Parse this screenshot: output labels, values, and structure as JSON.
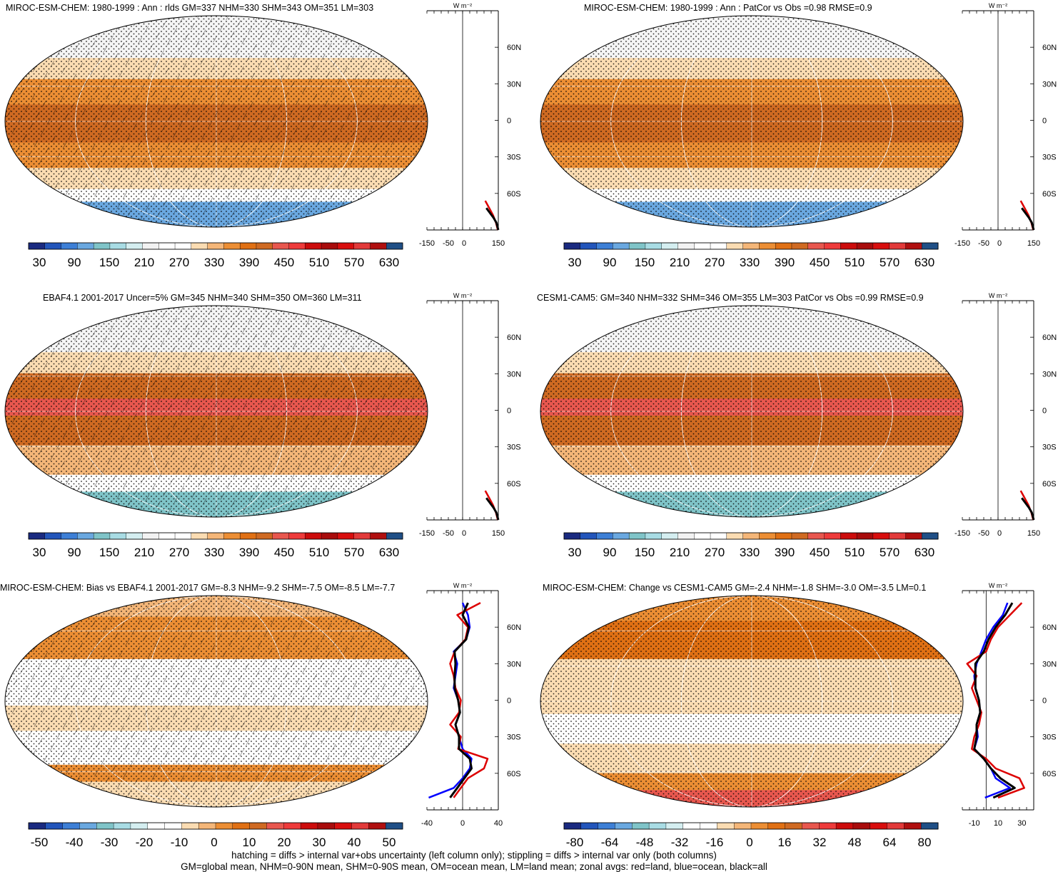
{
  "chart_data": [
    {
      "type": "heatmap",
      "title": "MIROC-ESM-CHEM: 1980-1999 : Ann : rlds GM=337 NHM=330 SHM=343 OM=351 LM=303",
      "colorbar": {
        "labels": [
          "30",
          "90",
          "150",
          "210",
          "270",
          "330",
          "390",
          "450",
          "510",
          "570",
          "630"
        ],
        "palette": "abs"
      },
      "zonal": {
        "xticks": [
          "-150",
          "-50",
          "0",
          "150"
        ],
        "ylabels": [
          "60N",
          "30N",
          "0",
          "30S",
          "60S"
        ],
        "unit": "W m⁻²",
        "xlim": [
          -150,
          150
        ],
        "series": [
          {
            "color": "#dd0000",
            "lat": [
              -90,
              -84,
              -78,
              -72,
              -66
            ],
            "values": [
              148,
              140,
              128,
              112,
              95
            ]
          },
          {
            "color": "#000000",
            "lat": [
              -90,
              -84,
              -80,
              -76,
              -72
            ],
            "values": [
              150,
              142,
              130,
              115,
              100
            ]
          }
        ]
      }
    },
    {
      "type": "heatmap",
      "title": "MIROC-ESM-CHEM: 1980-1999 : Ann : PatCor vs Obs =0.98 RMSE=0.9",
      "colorbar": {
        "labels": [
          "30",
          "90",
          "150",
          "210",
          "270",
          "330",
          "390",
          "450",
          "510",
          "570",
          "630"
        ],
        "palette": "abs"
      },
      "zonal": {
        "xticks": [
          "-150",
          "-50",
          "0",
          "150"
        ],
        "ylabels": [
          "60N",
          "30N",
          "0",
          "30S",
          "60S"
        ],
        "unit": "W m⁻²",
        "xlim": [
          -150,
          150
        ],
        "series": [
          {
            "color": "#dd0000",
            "lat": [
              -90,
              -84,
              -78,
              -72,
              -66
            ],
            "values": [
              148,
              140,
              128,
              112,
              95
            ]
          },
          {
            "color": "#000000",
            "lat": [
              -90,
              -84,
              -80,
              -76,
              -72
            ],
            "values": [
              150,
              142,
              130,
              115,
              100
            ]
          }
        ]
      }
    },
    {
      "type": "heatmap",
      "title": "EBAF4.1 2001-2017 Uncer=5% GM=345 NHM=340 SHM=350 OM=360 LM=311",
      "colorbar": {
        "labels": [
          "30",
          "90",
          "150",
          "210",
          "270",
          "330",
          "390",
          "450",
          "510",
          "570",
          "630"
        ],
        "palette": "abs"
      },
      "zonal": {
        "xticks": [
          "-150",
          "-50",
          "0",
          "150"
        ],
        "ylabels": [
          "60N",
          "30N",
          "0",
          "30S",
          "60S"
        ],
        "unit": "W m⁻²",
        "xlim": [
          -150,
          150
        ],
        "series": [
          {
            "color": "#dd0000",
            "lat": [
              -90,
              -84,
              -78,
              -72,
              -66
            ],
            "values": [
              148,
              140,
              128,
              112,
              95
            ]
          },
          {
            "color": "#000000",
            "lat": [
              -90,
              -84,
              -80,
              -76,
              -72
            ],
            "values": [
              150,
              142,
              130,
              115,
              100
            ]
          }
        ]
      }
    },
    {
      "type": "heatmap",
      "title": "CESM1-CAM5: GM=340 NHM=332 SHM=346 OM=355 LM=303 PatCor vs Obs =0.99 RMSE=0.9",
      "colorbar": {
        "labels": [
          "30",
          "90",
          "150",
          "210",
          "270",
          "330",
          "390",
          "450",
          "510",
          "570",
          "630"
        ],
        "palette": "abs"
      },
      "zonal": {
        "xticks": [
          "-150",
          "-50",
          "0",
          "150"
        ],
        "ylabels": [
          "60N",
          "30N",
          "0",
          "30S",
          "60S"
        ],
        "unit": "W m⁻²",
        "xlim": [
          -150,
          150
        ],
        "series": [
          {
            "color": "#dd0000",
            "lat": [
              -90,
              -84,
              -78,
              -72,
              -66
            ],
            "values": [
              148,
              140,
              128,
              112,
              95
            ]
          },
          {
            "color": "#000000",
            "lat": [
              -90,
              -84,
              -80,
              -76,
              -72
            ],
            "values": [
              150,
              142,
              130,
              115,
              100
            ]
          }
        ]
      }
    },
    {
      "type": "heatmap",
      "title": "MIROC-ESM-CHEM: Bias vs EBAF4.1 2001-2017 GM=-8.3 NHM=-9.2 SHM=-7.5 OM=-8.5 LM=-7.7",
      "colorbar": {
        "labels": [
          "-50",
          "-40",
          "-30",
          "-20",
          "-10",
          "0",
          "10",
          "20",
          "30",
          "40",
          "50"
        ],
        "palette": "diff"
      },
      "zonal": {
        "xticks": [
          "-40",
          "0",
          "40"
        ],
        "ylabels": [
          "60N",
          "30N",
          "0",
          "30S",
          "60S"
        ],
        "unit": "W m⁻²",
        "xlim": [
          -40,
          40
        ],
        "series": [
          {
            "color": "#0000ff",
            "lat": [
              -80,
              -72,
              -64,
              -56,
              -48,
              -40,
              -30,
              -20,
              -10,
              0,
              10,
              20,
              30,
              40,
              50,
              60,
              70,
              80
            ],
            "values": [
              -38,
              -10,
              0,
              8,
              10,
              0,
              -4,
              -8,
              -3,
              -5,
              -10,
              -8,
              -6,
              -10,
              4,
              8,
              6,
              0
            ]
          },
          {
            "color": "#dd0000",
            "lat": [
              -80,
              -72,
              -64,
              -56,
              -48,
              -40,
              -30,
              -20,
              -10,
              0,
              10,
              20,
              30,
              40,
              50,
              60,
              70,
              80
            ],
            "values": [
              -10,
              -2,
              6,
              24,
              28,
              -5,
              -2,
              -14,
              -4,
              -2,
              -8,
              -10,
              -14,
              -9,
              3,
              6,
              -6,
              20
            ]
          },
          {
            "color": "#000000",
            "lat": [
              -80,
              -72,
              -64,
              -56,
              -48,
              -40,
              -30,
              -20,
              -10,
              0,
              10,
              20,
              30,
              40,
              50,
              60,
              70,
              80
            ],
            "values": [
              -14,
              -6,
              2,
              10,
              8,
              -4,
              -4,
              -8,
              -3,
              -5,
              -9,
              -9,
              -8,
              -9,
              4,
              7,
              0,
              6
            ]
          }
        ]
      }
    },
    {
      "type": "heatmap",
      "title": "MIROC-ESM-CHEM: Change vs CESM1-CAM5 GM=-2.4 NHM=-1.8 SHM=-3.0 OM=-3.5 LM=0.1",
      "colorbar": {
        "labels": [
          "-80",
          "-64",
          "-48",
          "-32",
          "-16",
          "0",
          "16",
          "32",
          "48",
          "64",
          "80"
        ],
        "palette": "diff"
      },
      "zonal": {
        "xticks": [
          "-10",
          "10",
          "30"
        ],
        "ylabels": [
          "60N",
          "30N",
          "0",
          "30S",
          "60S"
        ],
        "unit": "W m⁻²",
        "xlim": [
          -20,
          40
        ],
        "series": [
          {
            "color": "#0000ff",
            "lat": [
              -80,
              -72,
              -64,
              -56,
              -48,
              -40,
              -30,
              -20,
              -10,
              0,
              10,
              20,
              30,
              40,
              50,
              60,
              70,
              80
            ],
            "values": [
              -1,
              20,
              8,
              4,
              -2,
              -10,
              -7,
              -8,
              -5,
              -6,
              -9,
              -10,
              -8,
              -4,
              0,
              6,
              14,
              18
            ]
          },
          {
            "color": "#dd0000",
            "lat": [
              -80,
              -72,
              -64,
              -56,
              -48,
              -40,
              -30,
              -20,
              -10,
              0,
              10,
              20,
              30,
              40,
              50,
              60,
              70,
              80
            ],
            "values": [
              10,
              32,
              28,
              8,
              0,
              -12,
              -10,
              -6,
              -4,
              -8,
              -12,
              -8,
              -16,
              0,
              4,
              10,
              20,
              30
            ]
          },
          {
            "color": "#000000",
            "lat": [
              -80,
              -72,
              -64,
              -56,
              -48,
              -40,
              -30,
              -20,
              -10,
              0,
              10,
              20,
              30,
              40,
              50,
              60,
              70,
              80
            ],
            "values": [
              6,
              24,
              12,
              4,
              -2,
              -10,
              -8,
              -8,
              -5,
              -6,
              -9,
              -9,
              -9,
              -2,
              2,
              8,
              16,
              22
            ]
          }
        ]
      }
    }
  ],
  "footnote": {
    "line1": "hatching = diffs > internal var+obs uncertainty (left column only); stippling = diffs > internal var only (both columns)",
    "line2": "GM=global mean, NHM=0-90N mean, SHM=0-90S mean, OM=ocean mean, LM=land mean; zonal avgs: red=land, blue=ocean, black=all"
  },
  "colors": {
    "abs": [
      "#1a2a80",
      "#2255bb",
      "#3d7fd6",
      "#6aa8e0",
      "#7fc4c8",
      "#a8dce4",
      "#d4eef0",
      "#f2f2f2",
      "#ffffff",
      "#ffffff",
      "#fbdcb2",
      "#f4b678",
      "#ec8e34",
      "#e07014",
      "#cf6a22",
      "#e8574e",
      "#ee3b3b",
      "#cc0c0c",
      "#a80c0c",
      "#d80e0e",
      "#e23a3a",
      "#b01010",
      "#1f4f86"
    ],
    "diff": [
      "#1a2a80",
      "#2255bb",
      "#3d7fd6",
      "#6aa8e0",
      "#7fc4c8",
      "#a8dce4",
      "#d4eef0",
      "#ffffff",
      "#ffffff",
      "#fbdcb2",
      "#f4b678",
      "#ec8e34",
      "#e07014",
      "#cf6a22",
      "#e8574e",
      "#ee3b3b",
      "#cc0c0c",
      "#a80c0c",
      "#d80e0e",
      "#e23a3a",
      "#b01010",
      "#1f4f86"
    ]
  }
}
